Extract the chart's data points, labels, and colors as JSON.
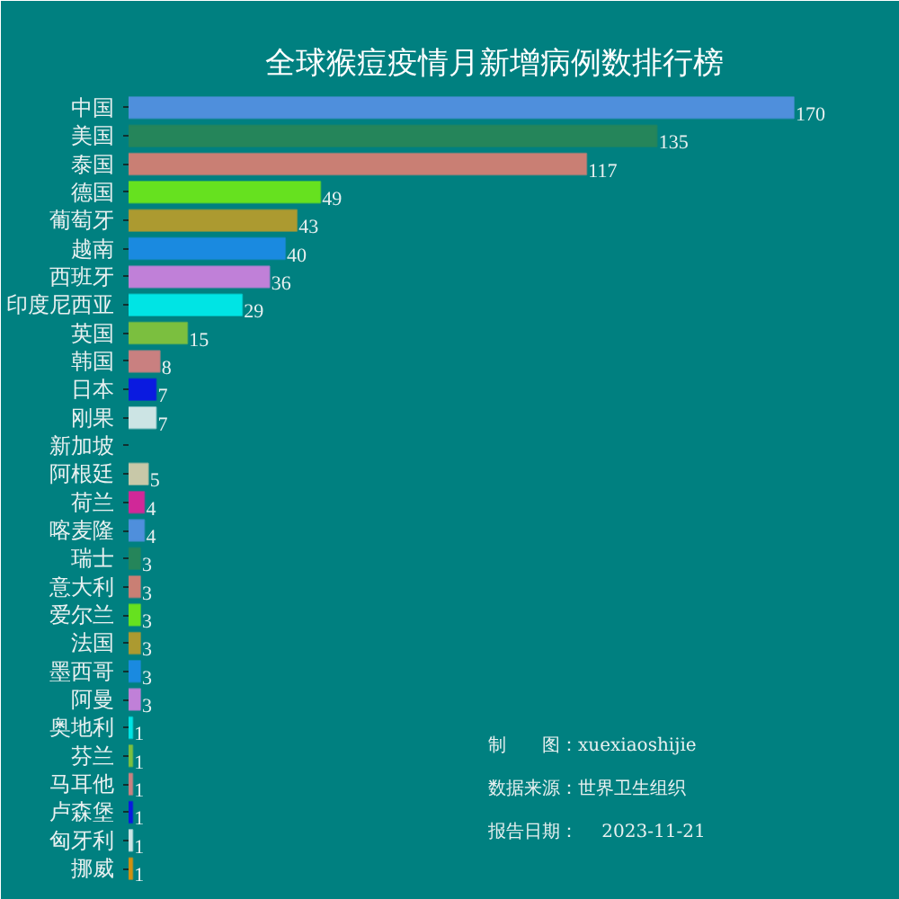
{
  "chart_data": {
    "type": "bar",
    "orientation": "horizontal",
    "title": "全球猴痘疫情月新增病例数排行榜",
    "categories": [
      "中国",
      "美国",
      "泰国",
      "德国",
      "葡萄牙",
      "越南",
      "西班牙",
      "印度尼西亚",
      "英国",
      "韩国",
      "日本",
      "刚果",
      "新加坡",
      "阿根廷",
      "荷兰",
      "喀麦隆",
      "瑞士",
      "意大利",
      "爱尔兰",
      "法国",
      "墨西哥",
      "阿曼",
      "奥地利",
      "芬兰",
      "马耳他",
      "卢森堡",
      "匈牙利",
      "挪威"
    ],
    "values": [
      170,
      135,
      117,
      49,
      43,
      40,
      36,
      29,
      15,
      8,
      7,
      7,
      null,
      5,
      4,
      4,
      3,
      3,
      3,
      3,
      3,
      3,
      1,
      1,
      1,
      1,
      1,
      1
    ],
    "colors": [
      "#4f8fdc",
      "#25855a",
      "#c97f74",
      "#66e11f",
      "#ac9a30",
      "#1a8ae0",
      "#c080d8",
      "#00e4e4",
      "#7bbf3f",
      "#c98080",
      "#0a1ae0",
      "#cce4e4",
      "#d09010",
      "#c8c8a8",
      "#d02898",
      "#4f8fdc",
      "#25855a",
      "#c97f74",
      "#66e11f",
      "#ac9a30",
      "#1a8ae0",
      "#c080d8",
      "#00e4e4",
      "#7bbf3f",
      "#c98080",
      "#0a1ae0",
      "#cce4e4",
      "#d09010"
    ],
    "data_labels": true,
    "grid": false,
    "annotations": [
      "制　　图：xuexiaoshijie",
      "数据来源：世界卫生组织",
      "报告日期：　 2023-11-21"
    ]
  }
}
